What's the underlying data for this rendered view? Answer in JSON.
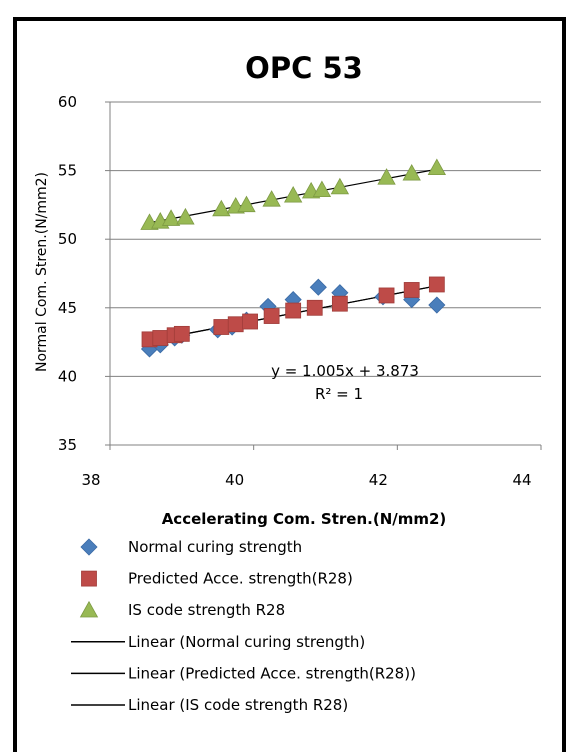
{
  "chart_data": {
    "type": "scatter",
    "title": "OPC 53",
    "xlabel": "Accelerating Com. Stren.(N/mm2)",
    "ylabel": "Normal Com. Stren.(N/mm2)",
    "xlim": [
      38,
      44
    ],
    "ylim": [
      35,
      60
    ],
    "xticks": [
      38,
      40,
      42,
      44
    ],
    "yticks": [
      35,
      40,
      45,
      50,
      55,
      60
    ],
    "grid": "horizontal",
    "legend_position": "bottom",
    "series": [
      {
        "name": "Normal curing strength",
        "marker": "diamond",
        "color": "#4a7ebb",
        "x": [
          38.55,
          38.7,
          38.9,
          39.0,
          39.5,
          39.7,
          39.9,
          40.2,
          40.55,
          40.9,
          41.2,
          41.8,
          42.2,
          42.55
        ],
        "y": [
          42.0,
          42.3,
          42.8,
          43.0,
          43.4,
          43.6,
          44.1,
          45.1,
          45.6,
          46.5,
          46.1,
          45.8,
          45.6,
          45.2
        ]
      },
      {
        "name": "Predicted Acce. strength(R28)",
        "marker": "square",
        "color": "#be4b48",
        "x": [
          38.55,
          38.7,
          38.9,
          39.0,
          39.55,
          39.75,
          39.95,
          40.25,
          40.55,
          40.85,
          41.2,
          41.85,
          42.2,
          42.55
        ],
        "y": [
          42.7,
          42.8,
          43.0,
          43.1,
          43.6,
          43.8,
          44.0,
          44.4,
          44.8,
          45.0,
          45.3,
          45.9,
          46.3,
          46.7
        ]
      },
      {
        "name": "IS code strength R28",
        "marker": "triangle",
        "color": "#98b954",
        "x": [
          38.55,
          38.7,
          38.85,
          39.05,
          39.55,
          39.75,
          39.9,
          40.25,
          40.55,
          40.8,
          40.95,
          41.2,
          41.85,
          42.2,
          42.55
        ],
        "y": [
          51.2,
          51.3,
          51.5,
          51.6,
          52.2,
          52.4,
          52.5,
          52.9,
          53.2,
          53.5,
          53.6,
          53.8,
          54.5,
          54.8,
          55.2
        ]
      }
    ],
    "trendlines": [
      {
        "name": "Linear (Normal curing strength)",
        "x": [
          38.55,
          42.55
        ],
        "y": [
          42.6,
          46.6
        ]
      },
      {
        "name": "Linear (Predicted Acce. strength(R28))",
        "x": [
          38.55,
          42.55
        ],
        "y": [
          42.6,
          46.6
        ]
      },
      {
        "name": "Linear (IS code strength R28)",
        "x": [
          38.55,
          42.55
        ],
        "y": [
          51.2,
          55.1
        ]
      }
    ],
    "annotations": {
      "equation": "y = 1.005x + 3.873",
      "r_squared": "R² = 1"
    }
  }
}
